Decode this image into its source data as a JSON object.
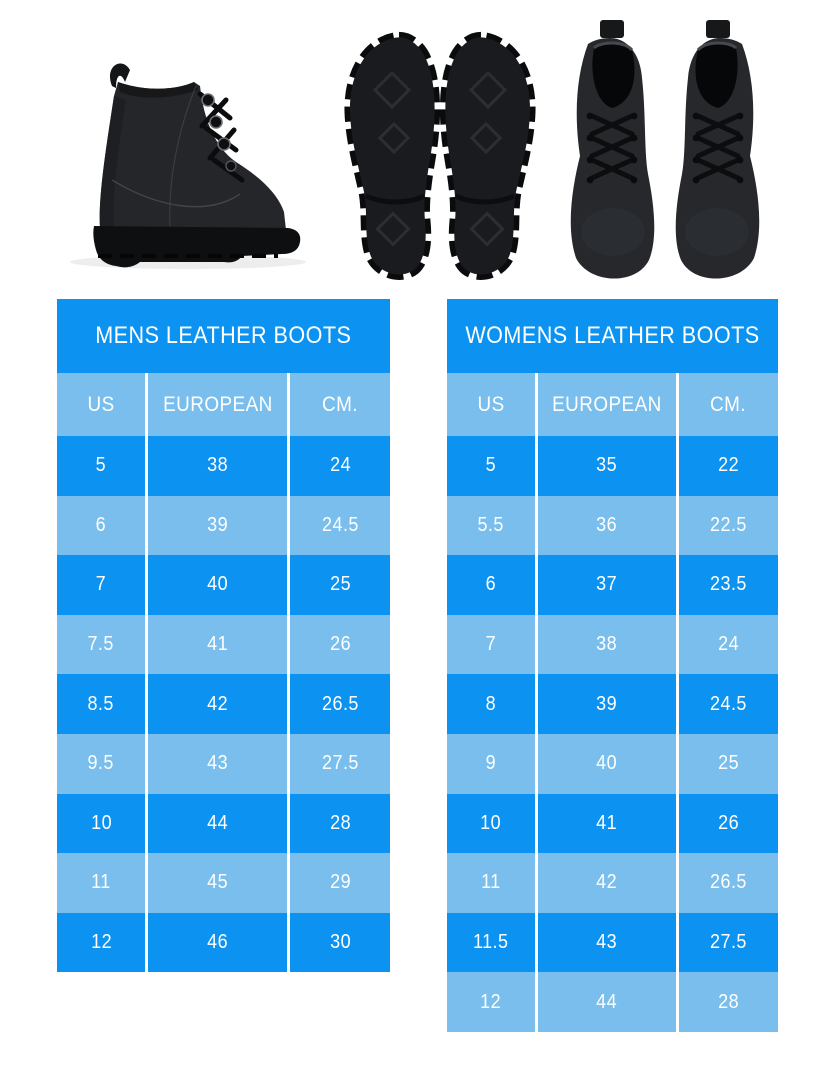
{
  "colors": {
    "primary_blue": "#0C93F2",
    "light_blue": "#79BEEC",
    "text_white": "#FFFFFF",
    "page_background": "#FFFFFF",
    "boot_black": "#232528"
  },
  "photos": [
    {
      "name": "boot-side-photo",
      "alt": "Black leather lace-up boot, side view"
    },
    {
      "name": "boot-soles-photo",
      "alt": "Pair of black lug soles, bottom view"
    },
    {
      "name": "boots-top-photo",
      "alt": "Pair of black leather boots, top view"
    }
  ],
  "chart_data": [
    {
      "type": "table",
      "title": "MENS LEATHER BOOTS",
      "columns": [
        "US",
        "EUROPEAN",
        "CM."
      ],
      "rows": [
        [
          "5",
          "38",
          "24"
        ],
        [
          "6",
          "39",
          "24.5"
        ],
        [
          "7",
          "40",
          "25"
        ],
        [
          "7.5",
          "41",
          "26"
        ],
        [
          "8.5",
          "42",
          "26.5"
        ],
        [
          "9.5",
          "43",
          "27.5"
        ],
        [
          "10",
          "44",
          "28"
        ],
        [
          "11",
          "45",
          "29"
        ],
        [
          "12",
          "46",
          "30"
        ]
      ]
    },
    {
      "type": "table",
      "title": "WOMENS LEATHER BOOTS",
      "columns": [
        "US",
        "EUROPEAN",
        "CM."
      ],
      "rows": [
        [
          "5",
          "35",
          "22"
        ],
        [
          "5.5",
          "36",
          "22.5"
        ],
        [
          "6",
          "37",
          "23.5"
        ],
        [
          "7",
          "38",
          "24"
        ],
        [
          "8",
          "39",
          "24.5"
        ],
        [
          "9",
          "40",
          "25"
        ],
        [
          "10",
          "41",
          "26"
        ],
        [
          "11",
          "42",
          "26.5"
        ],
        [
          "11.5",
          "43",
          "27.5"
        ],
        [
          "12",
          "44",
          "28"
        ]
      ]
    }
  ]
}
